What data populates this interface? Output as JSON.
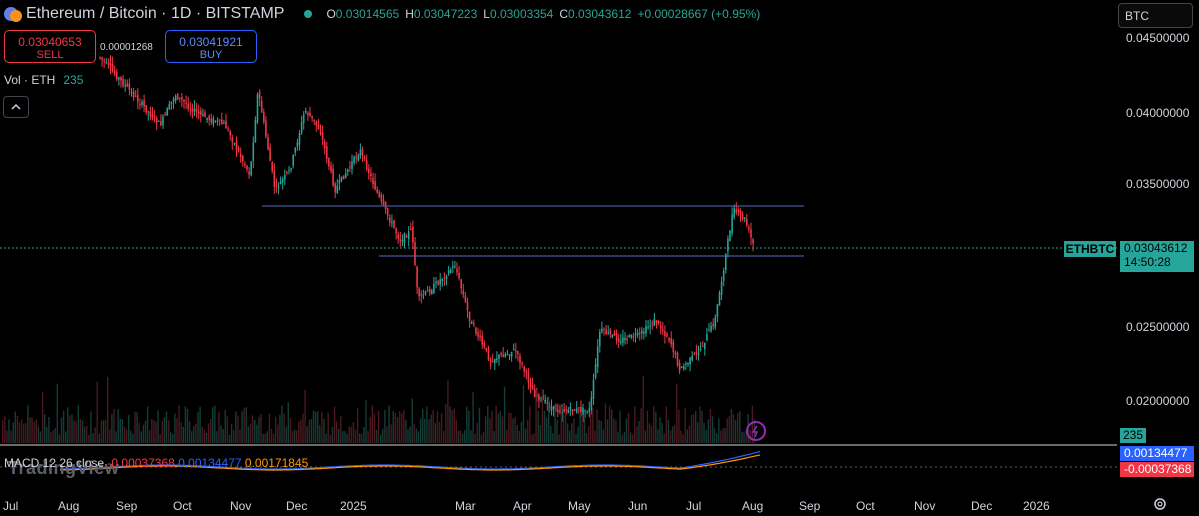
{
  "header": {
    "symbol_title": "Ethereum / Bitcoin · 1D · BITSTAMP",
    "ohlc": {
      "o_label": "O",
      "o": "0.03014565",
      "h_label": "H",
      "h": "0.03047223",
      "l_label": "L",
      "l": "0.03003354",
      "c_label": "C",
      "c": "0.03043612",
      "change": "+0.00028667 (+0.95%)"
    }
  },
  "trade": {
    "sell_price": "0.03040653",
    "sell_label": "SELL",
    "spread": "0.00001268",
    "buy_price": "0.03041921",
    "buy_label": "BUY"
  },
  "volume": {
    "label": "Vol · ETH",
    "value": "235"
  },
  "currency_button": "BTC",
  "price_axis": [
    "0.04500000",
    "0.04000000",
    "0.03500000",
    "0.02500000",
    "0.02000000"
  ],
  "last_price": {
    "symbol": "ETHBTC",
    "price": "0.03043612",
    "countdown": "14:50:28"
  },
  "volume_tag": "235",
  "macd": {
    "label": "MACD 12 26 close",
    "hist": "-0.00037368",
    "macd": "0.00134477",
    "signal": "0.00171845",
    "macd_tag": "0.00134477",
    "hist_tag": "-0.00037368"
  },
  "time_axis": [
    "Jul",
    "Aug",
    "Sep",
    "Oct",
    "Nov",
    "Dec",
    "2025",
    "Mar",
    "Apr",
    "May",
    "Jun",
    "Jul",
    "Aug",
    "Sep",
    "Oct",
    "Nov",
    "Dec",
    "2026"
  ],
  "watermark": "TradingView",
  "colors": {
    "up": "#26a69a",
    "down": "#f23645",
    "line": "#2962ff",
    "signal": "#ff9800"
  },
  "icons": {
    "symbol": "eth-btc-icon",
    "collapse": "chevron-up-icon",
    "settings": "gear-icon",
    "alert": "bolt-icon"
  }
}
